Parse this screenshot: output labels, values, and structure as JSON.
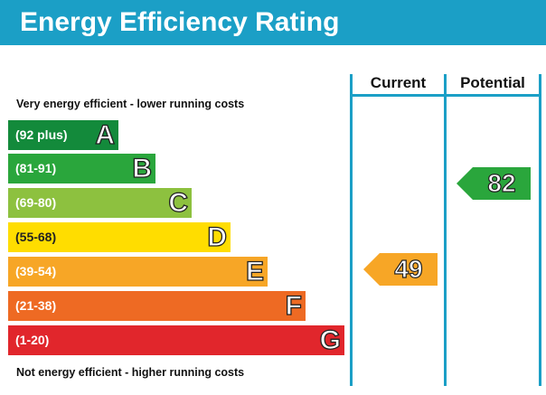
{
  "title": "Energy Efficiency Rating",
  "columns": {
    "current": "Current",
    "potential": "Potential"
  },
  "notes": {
    "top": "Very energy efficient - lower running costs",
    "bottom": "Not energy efficient - higher running costs"
  },
  "colors": {
    "header": "#1b9fc6",
    "A": "#138a3b",
    "B": "#2aa63c",
    "C": "#8dc13f",
    "D": "#ffdd00",
    "E": "#f7a626",
    "F": "#ee6a23",
    "G": "#e1262c"
  },
  "chart_data": {
    "type": "bar",
    "bands": [
      {
        "letter": "A",
        "range": "(92 plus)"
      },
      {
        "letter": "B",
        "range": "(81-91)"
      },
      {
        "letter": "C",
        "range": "(69-80)"
      },
      {
        "letter": "D",
        "range": "(55-68)"
      },
      {
        "letter": "E",
        "range": "(39-54)"
      },
      {
        "letter": "F",
        "range": "(21-38)"
      },
      {
        "letter": "G",
        "range": "(1-20)"
      }
    ],
    "current": {
      "value": "49",
      "band": "E"
    },
    "potential": {
      "value": "82",
      "band": "B"
    }
  }
}
